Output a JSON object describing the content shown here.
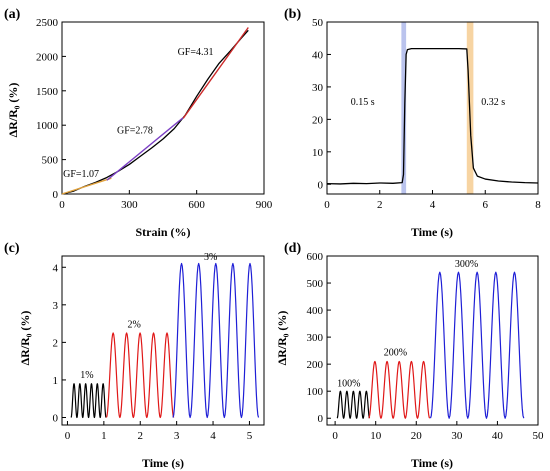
{
  "chart_data": [
    {
      "panel": "(a)",
      "type": "line",
      "xlabel": "Strain (%)",
      "ylabel": "ΔR/R₀ (%)",
      "xlim": [
        0,
        900
      ],
      "ylim": [
        0,
        2500
      ],
      "xticks": [
        0,
        300,
        600,
        900
      ],
      "yticks": [
        0,
        500,
        1000,
        1500,
        2000,
        2500
      ],
      "series": [
        {
          "color": "#000000",
          "x": [
            0,
            50,
            100,
            150,
            200,
            250,
            300,
            350,
            400,
            450,
            500,
            550,
            600,
            650,
            700,
            750,
            800,
            830
          ],
          "y": [
            0,
            40,
            110,
            170,
            240,
            330,
            430,
            550,
            670,
            800,
            950,
            1150,
            1420,
            1670,
            1900,
            2080,
            2270,
            2380
          ]
        }
      ],
      "fits": [
        {
          "color": "#e0a13c",
          "x": [
            0,
            220
          ],
          "y": [
            0,
            230
          ]
        },
        {
          "color": "#7b3fc4",
          "x": [
            200,
            540
          ],
          "y": [
            200,
            1110
          ]
        },
        {
          "color": "#cc2a2a",
          "x": [
            540,
            830
          ],
          "y": [
            1100,
            2420
          ]
        }
      ],
      "annotations": [
        {
          "text": "GF=1.07",
          "x": 5,
          "y": 250
        },
        {
          "text": "GF=2.78",
          "x": 245,
          "y": 880
        },
        {
          "text": "GF=4.31",
          "x": 515,
          "y": 2020
        }
      ]
    },
    {
      "panel": "(b)",
      "type": "line",
      "xlabel": "Time (s)",
      "ylabel": "",
      "xlim": [
        0,
        8
      ],
      "ylim": [
        -3,
        50
      ],
      "xticks": [
        0,
        2,
        4,
        6,
        8
      ],
      "yticks": [
        0,
        10,
        20,
        30,
        40,
        50
      ],
      "series": [
        {
          "color": "#000000",
          "x": [
            0,
            0.5,
            1,
            1.5,
            2,
            2.5,
            2.85,
            2.9,
            2.95,
            3.0,
            3.05,
            3.2,
            4,
            5,
            5.3,
            5.35,
            5.45,
            5.55,
            5.7,
            6,
            6.5,
            7,
            7.5,
            8
          ],
          "y": [
            0.2,
            0.1,
            0.3,
            0.2,
            0.4,
            0.3,
            0.5,
            3,
            25,
            40,
            41.5,
            41.8,
            41.8,
            41.8,
            41.7,
            35,
            15,
            5,
            2.5,
            1.6,
            1.0,
            0.7,
            0.5,
            0.4
          ]
        }
      ],
      "highlights": [
        {
          "color": "#a9b4e8",
          "x": [
            2.82,
            3.0
          ]
        },
        {
          "color": "#f5c98b",
          "x": [
            5.3,
            5.55
          ]
        }
      ],
      "annotations": [
        {
          "text": "0.15 s",
          "x": 0.9,
          "y": 24.5
        },
        {
          "text": "0.32 s",
          "x": 5.85,
          "y": 24.5
        }
      ]
    },
    {
      "panel": "(c)",
      "type": "line",
      "xlabel": "Time (s)",
      "ylabel": "ΔR/R₀ (%)",
      "xlim": [
        -0.15,
        5.4
      ],
      "ylim": [
        -0.2,
        4.3
      ],
      "xticks": [
        0,
        1,
        2,
        3,
        4,
        5
      ],
      "yticks": [
        0,
        1,
        2,
        3,
        4
      ],
      "series": [
        {
          "name": "1%",
          "color": "#000000",
          "start": 0.1,
          "cycles": 6,
          "period": 0.16,
          "peak": 0.9
        },
        {
          "name": "2%",
          "color": "#e01818",
          "start": 1.07,
          "cycles": 5,
          "period": 0.37,
          "peak": 2.25
        },
        {
          "name": "3%",
          "color": "#1f1fd6",
          "start": 2.9,
          "cycles": 5,
          "period": 0.47,
          "peak": 4.1
        }
      ],
      "annotations": [
        {
          "text": "1%",
          "x": 0.35,
          "y": 1.05
        },
        {
          "text": "2%",
          "x": 1.65,
          "y": 2.4
        },
        {
          "text": "3%",
          "x": 3.75,
          "y": 4.2
        }
      ]
    },
    {
      "panel": "(d)",
      "type": "line",
      "xlabel": "Time (s)",
      "ylabel": "ΔR/R₀ (%)",
      "xlim": [
        -2,
        50
      ],
      "ylim": [
        -25,
        600
      ],
      "xticks": [
        0,
        10,
        20,
        30,
        40,
        50
      ],
      "yticks": [
        0,
        100,
        200,
        300,
        400,
        500,
        600
      ],
      "series": [
        {
          "name": "100%",
          "color": "#000000",
          "start": 0.5,
          "cycles": 5,
          "period": 1.6,
          "peak": 100
        },
        {
          "name": "200%",
          "color": "#e01818",
          "start": 8.3,
          "cycles": 5,
          "period": 3.0,
          "peak": 210
        },
        {
          "name": "300%",
          "color": "#1f1fd6",
          "start": 23.5,
          "cycles": 5,
          "period": 4.6,
          "peak": 540
        }
      ],
      "annotations": [
        {
          "text": "100%",
          "x": 0.5,
          "y": 118
        },
        {
          "text": "200%",
          "x": 12,
          "y": 232
        },
        {
          "text": "300%",
          "x": 29.5,
          "y": 560
        }
      ]
    }
  ]
}
